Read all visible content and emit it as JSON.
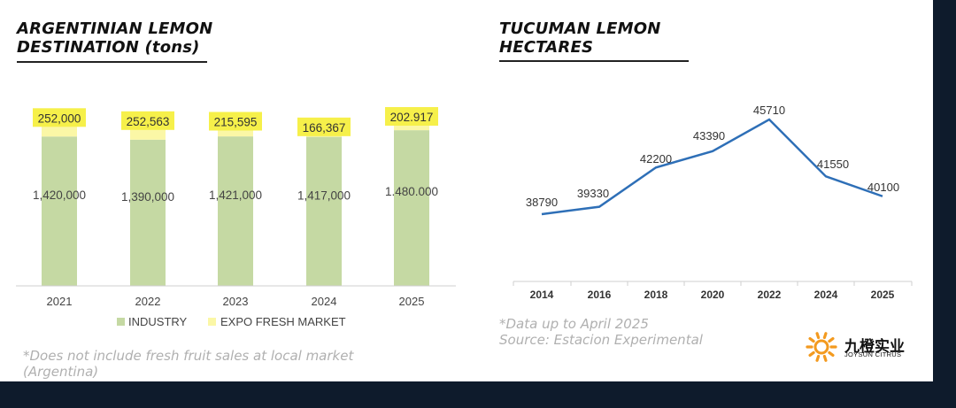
{
  "left_panel": {
    "title_line1": "ARGENTINIAN LEMON",
    "title_line2": "DESTINATION (tons)",
    "footnote_line1": "*Does not include fresh fruit sales at local market",
    "footnote_line2": "(Argentina)"
  },
  "right_panel": {
    "title_line1": "TUCUMAN LEMON",
    "title_line2": "HECTARES",
    "note_line1": "*Data up to April 2025",
    "note_line2": "Source: Estacion Experimental"
  },
  "logo": {
    "name_cn": "九橙实业",
    "name_en": "JOYSUN CITRUS"
  },
  "chart_data": [
    {
      "type": "bar",
      "stacked": true,
      "categories": [
        "2021",
        "2022",
        "2023",
        "2024",
        "2025"
      ],
      "series": [
        {
          "name": "INDUSTRY",
          "values": [
            1420000,
            1390000,
            1421000,
            1417000,
            1480000
          ],
          "labels": [
            "1,420,000",
            "1,390,000",
            "1,421,000",
            "1,417,000",
            "1.480.000"
          ],
          "color": "#c5d9a3"
        },
        {
          "name": "EXPO FRESH MARKET",
          "values": [
            252000,
            252563,
            215595,
            166367,
            202917
          ],
          "labels": [
            "252,000",
            "252,563",
            "215,595",
            "166,367",
            "202.917"
          ],
          "color": "#fbf7a6"
        }
      ],
      "label_highlight": "#f6f04a",
      "legend": "bottom",
      "grid": false
    },
    {
      "type": "line",
      "x": [
        "2014",
        "2016",
        "2018",
        "2020",
        "2022",
        "2024",
        "2025"
      ],
      "y": [
        38790,
        39330,
        42200,
        43390,
        45710,
        41550,
        40100
      ],
      "color": "#2e6fb7",
      "grid": false,
      "data_labels": true
    }
  ]
}
